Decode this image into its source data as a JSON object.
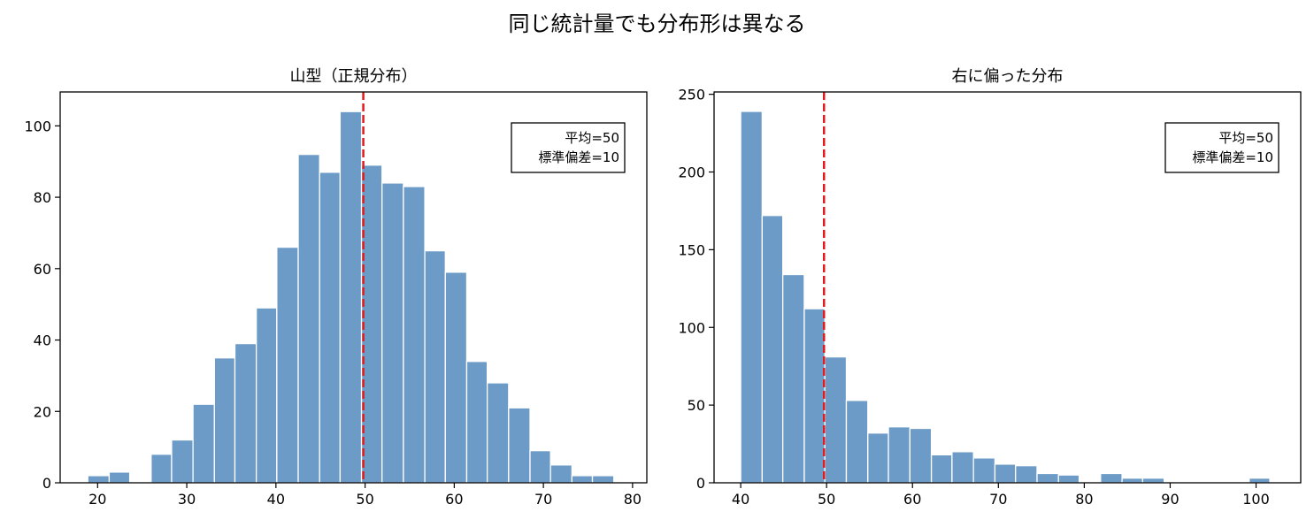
{
  "figure": {
    "suptitle": "同じ統計量でも分布形は異なる"
  },
  "colors": {
    "bar_fill": "#6b9bc6",
    "bar_edge": "#ffffff",
    "mean_line": "#e31a1c",
    "axis": "#000000"
  },
  "chart_data": [
    {
      "type": "bar",
      "title": "山型（正規分布）",
      "xlabel": "",
      "ylabel": "",
      "xlim": [
        15.8,
        81.6
      ],
      "ylim": [
        0,
        109.5
      ],
      "xticks": [
        20,
        30,
        40,
        50,
        60,
        70,
        80
      ],
      "yticks": [
        0,
        20,
        40,
        60,
        80,
        100
      ],
      "bin_edges": [
        18.9,
        21.3,
        23.6,
        26.0,
        28.3,
        30.7,
        33.1,
        35.4,
        37.8,
        40.1,
        42.5,
        44.9,
        47.2,
        49.6,
        51.9,
        54.3,
        56.7,
        59.0,
        61.4,
        63.7,
        66.1,
        68.5,
        70.8,
        73.2,
        75.5,
        77.9
      ],
      "counts": [
        2,
        3,
        0,
        8,
        12,
        22,
        35,
        39,
        49,
        66,
        92,
        87,
        104,
        89,
        84,
        83,
        65,
        59,
        34,
        28,
        21,
        9,
        5,
        2,
        2
      ],
      "mean_line_x": 49.8,
      "stats_box": {
        "mean_text": "平均=50",
        "std_text": "標準偏差=10",
        "location": "upper right"
      }
    },
    {
      "type": "bar",
      "title": "右に偏った分布",
      "xlabel": "",
      "ylabel": "",
      "xlim": [
        36.9,
        105.2
      ],
      "ylim": [
        0,
        251.5
      ],
      "xticks": [
        40,
        50,
        60,
        70,
        80,
        90,
        100
      ],
      "yticks": [
        0,
        50,
        100,
        150,
        200,
        250
      ],
      "bin_edges": [
        40.0,
        42.5,
        44.9,
        47.4,
        49.8,
        52.3,
        54.8,
        57.2,
        59.7,
        62.2,
        64.6,
        67.1,
        69.6,
        72.0,
        74.5,
        77.0,
        79.4,
        81.9,
        84.4,
        86.8,
        89.3,
        91.8,
        94.2,
        96.7,
        99.2,
        101.6
      ],
      "counts": [
        239,
        172,
        134,
        112,
        81,
        53,
        32,
        36,
        35,
        18,
        20,
        16,
        12,
        11,
        6,
        5,
        0,
        6,
        3,
        3,
        0,
        0,
        0,
        0,
        3
      ],
      "mean_line_x": 49.7,
      "stats_box": {
        "mean_text": "平均=50",
        "std_text": "標準偏差=10",
        "location": "upper right"
      }
    }
  ]
}
